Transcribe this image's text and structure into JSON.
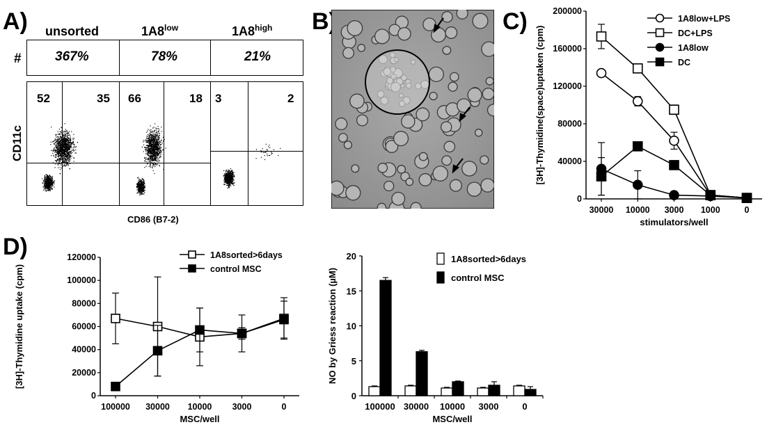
{
  "panelA": {
    "label": "A)",
    "columns": [
      {
        "name": "unsorted",
        "sup": ""
      },
      {
        "name": "1A8",
        "sup": "low"
      },
      {
        "name": "1A8",
        "sup": "high"
      }
    ],
    "row_label": "#",
    "percents": [
      "367%",
      "78%",
      "21%"
    ],
    "quadrants": [
      [
        "52",
        "35"
      ],
      [
        "66",
        "18"
      ],
      [
        "3",
        "2"
      ]
    ],
    "ylabel": "CD11c",
    "xlabel": "CD86 (B7-2)"
  },
  "panelB": {
    "label": "B)"
  },
  "panelC": {
    "label": "C)"
  },
  "panelD": {
    "label": "D)"
  },
  "chart_data": [
    {
      "type": "line",
      "panel": "C",
      "title": "",
      "xlabel": "stimulators/well",
      "ylabel": "[3H]-Thymidine(space)uptaken (cpm)",
      "categories": [
        "30000",
        "10000",
        "3000",
        "1000",
        "0"
      ],
      "ylim": [
        0,
        200000
      ],
      "yticks": [
        "0",
        "40000",
        "80000",
        "120000",
        "160000",
        "200000"
      ],
      "legend_position": "top-right",
      "series": [
        {
          "name": "1A8low+LPS",
          "marker": "circle-open",
          "values": [
            134000,
            104000,
            62000,
            4000,
            1000
          ],
          "errors": [
            0,
            5000,
            9000,
            1000,
            500
          ]
        },
        {
          "name": "DC+LPS",
          "marker": "square-open",
          "values": [
            173000,
            139000,
            95000,
            4000,
            1000
          ],
          "errors": [
            13000,
            4000,
            5000,
            1000,
            500
          ]
        },
        {
          "name": "1A8low",
          "marker": "circle-filled",
          "values": [
            32000,
            15000,
            4000,
            3000,
            1000
          ],
          "errors": [
            28000,
            15000,
            1000,
            500,
            500
          ]
        },
        {
          "name": "DC",
          "marker": "square-filled",
          "values": [
            24000,
            56000,
            36000,
            4000,
            1000
          ],
          "errors": [
            20000,
            0,
            0,
            1000,
            500
          ]
        }
      ]
    },
    {
      "type": "line",
      "panel": "D-left",
      "title": "",
      "xlabel": "MSC/well",
      "ylabel": "[3H]-Thymidine uptake (cpm)",
      "categories": [
        "100000",
        "30000",
        "10000",
        "3000",
        "0"
      ],
      "ylim": [
        0,
        120000
      ],
      "yticks": [
        "0",
        "20000",
        "40000",
        "60000",
        "80000",
        "100000",
        "120000"
      ],
      "legend_position": "top-right",
      "series": [
        {
          "name": "1A8sorted>6days",
          "marker": "square-open",
          "values": [
            67000,
            60000,
            51000,
            54000,
            67000
          ],
          "errors": [
            22000,
            43000,
            25000,
            5000,
            18000
          ]
        },
        {
          "name": "control MSC",
          "marker": "square-filled",
          "values": [
            8000,
            39000,
            57000,
            54000,
            66000
          ],
          "errors": [
            0,
            22000,
            19000,
            16000,
            16000
          ]
        }
      ]
    },
    {
      "type": "bar",
      "panel": "D-right",
      "title": "",
      "xlabel": "MSC/well",
      "ylabel": "NO by Griess reaction (µM)",
      "categories": [
        "100000",
        "30000",
        "10000",
        "3000",
        "0"
      ],
      "ylim": [
        0,
        20
      ],
      "yticks": [
        "0",
        "5",
        "10",
        "15",
        "20"
      ],
      "legend_position": "top-right",
      "series": [
        {
          "name": "1A8sorted>6days",
          "fill": "white",
          "values": [
            1.3,
            1.4,
            1.1,
            1.1,
            1.4
          ],
          "errors": [
            0.1,
            0.1,
            0.1,
            0.1,
            0.1
          ]
        },
        {
          "name": "control MSC",
          "fill": "black",
          "values": [
            16.5,
            6.3,
            2.0,
            1.5,
            0.9
          ],
          "errors": [
            0.4,
            0.2,
            0.1,
            0.5,
            0.4
          ]
        }
      ]
    }
  ]
}
